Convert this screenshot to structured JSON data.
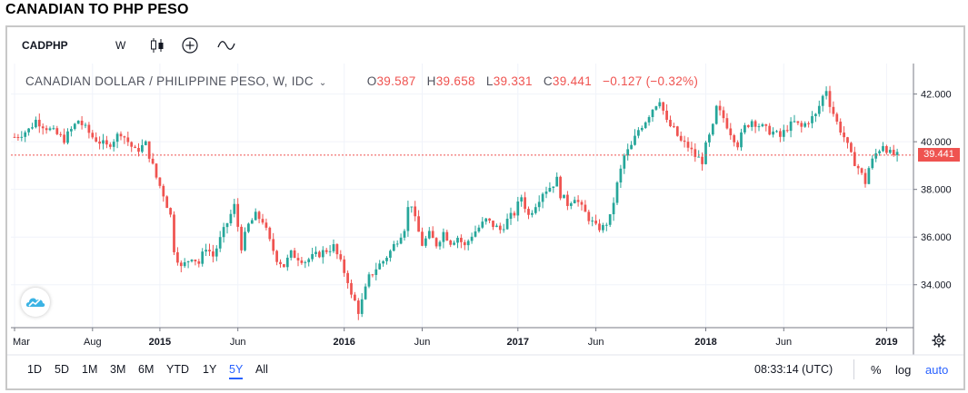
{
  "page_title": "CANADIAN TO PHP PESO",
  "toolbar": {
    "symbol": "CADPHP",
    "interval": "W",
    "icons": [
      "candlestick-icon",
      "plus-circle-icon",
      "indicator-wave-icon"
    ]
  },
  "legend": {
    "instrument": "CANADIAN DOLLAR / PHILIPPINE PESO, W, IDC",
    "open_label": "O",
    "open": "39.587",
    "high_label": "H",
    "high": "39.658",
    "low_label": "L",
    "low": "39.331",
    "close_label": "C",
    "close": "39.441",
    "change": "−0.127 (−0.32%)"
  },
  "last_price": "39.441",
  "colors": {
    "up": "#26a69a",
    "down": "#ef5350",
    "accent": "#2962ff",
    "grid": "#f0f3fa"
  },
  "range_buttons": [
    "1D",
    "5D",
    "1M",
    "3M",
    "6M",
    "YTD",
    "1Y",
    "5Y",
    "All"
  ],
  "range_active": "5Y",
  "clock": "08:33:14 (UTC)",
  "scale_buttons": [
    "%",
    "log",
    "auto"
  ],
  "scale_active": "auto",
  "chart_data": {
    "type": "candlestick",
    "interval": "weekly",
    "y_axis": {
      "ticks": [
        34.0,
        36.0,
        38.0,
        40.0,
        42.0
      ],
      "tick_labels": [
        "34.000",
        "36.000",
        "38.000",
        "40.000",
        "42.000"
      ],
      "range": [
        32.2,
        42.9
      ],
      "side": "right"
    },
    "x_axis": {
      "tick_labels": [
        "Mar",
        "Aug",
        "2015",
        "Jun",
        "2016",
        "Jun",
        "2017",
        "Jun",
        "2018",
        "Jun",
        "2019"
      ],
      "tick_weeks": [
        0,
        22,
        41,
        63,
        93,
        115,
        142,
        164,
        195,
        217,
        246
      ],
      "total_weeks": 250
    },
    "grid": true,
    "last_price_line": 39.441,
    "close_path": [
      [
        0,
        40.2
      ],
      [
        4,
        40.5
      ],
      [
        6,
        40.9
      ],
      [
        10,
        40.5
      ],
      [
        14,
        40.1
      ],
      [
        18,
        40.9
      ],
      [
        22,
        40.2
      ],
      [
        26,
        39.8
      ],
      [
        30,
        40.4
      ],
      [
        34,
        39.6
      ],
      [
        37,
        39.9
      ],
      [
        40,
        38.5
      ],
      [
        42,
        37.8
      ],
      [
        44,
        36.9
      ],
      [
        45,
        35.5
      ],
      [
        47,
        34.7
      ],
      [
        50,
        35.2
      ],
      [
        52,
        34.9
      ],
      [
        54,
        35.6
      ],
      [
        56,
        35.2
      ],
      [
        58,
        35.9
      ],
      [
        60,
        36.6
      ],
      [
        62,
        37.3
      ],
      [
        64,
        35.6
      ],
      [
        66,
        36.5
      ],
      [
        68,
        36.9
      ],
      [
        70,
        36.7
      ],
      [
        72,
        35.8
      ],
      [
        74,
        35.1
      ],
      [
        76,
        34.8
      ],
      [
        78,
        35.3
      ],
      [
        82,
        35.0
      ],
      [
        86,
        35.3
      ],
      [
        90,
        35.6
      ],
      [
        92,
        34.9
      ],
      [
        94,
        34.2
      ],
      [
        95,
        33.5
      ],
      [
        96,
        33.3
      ],
      [
        97,
        32.9
      ],
      [
        98,
        33.3
      ],
      [
        100,
        34.3
      ],
      [
        102,
        34.7
      ],
      [
        104,
        35.0
      ],
      [
        106,
        35.4
      ],
      [
        108,
        35.9
      ],
      [
        110,
        36.4
      ],
      [
        111,
        37.2
      ],
      [
        112,
        37.4
      ],
      [
        113,
        36.7
      ],
      [
        115,
        35.7
      ],
      [
        117,
        36.1
      ],
      [
        119,
        35.7
      ],
      [
        121,
        36.2
      ],
      [
        123,
        35.8
      ],
      [
        125,
        36.0
      ],
      [
        127,
        35.6
      ],
      [
        129,
        36.1
      ],
      [
        131,
        36.4
      ],
      [
        133,
        36.7
      ],
      [
        135,
        36.5
      ],
      [
        137,
        36.3
      ],
      [
        139,
        36.7
      ],
      [
        141,
        37.0
      ],
      [
        143,
        37.7
      ],
      [
        145,
        36.9
      ],
      [
        147,
        37.4
      ],
      [
        149,
        37.9
      ],
      [
        151,
        38.1
      ],
      [
        153,
        38.4
      ],
      [
        154,
        37.8
      ],
      [
        156,
        37.4
      ],
      [
        158,
        37.7
      ],
      [
        160,
        37.2
      ],
      [
        162,
        36.8
      ],
      [
        164,
        36.4
      ],
      [
        166,
        36.4
      ],
      [
        168,
        36.8
      ],
      [
        170,
        38.2
      ],
      [
        172,
        39.4
      ],
      [
        174,
        39.8
      ],
      [
        176,
        40.5
      ],
      [
        178,
        40.9
      ],
      [
        180,
        41.4
      ],
      [
        182,
        41.8
      ],
      [
        184,
        40.8
      ],
      [
        186,
        40.5
      ],
      [
        188,
        40.0
      ],
      [
        190,
        39.8
      ],
      [
        192,
        39.4
      ],
      [
        194,
        39.2
      ],
      [
        195,
        39.8
      ],
      [
        197,
        40.6
      ],
      [
        198,
        41.4
      ],
      [
        200,
        41.0
      ],
      [
        202,
        40.4
      ],
      [
        204,
        39.9
      ],
      [
        206,
        40.6
      ],
      [
        208,
        40.9
      ],
      [
        210,
        40.7
      ],
      [
        212,
        40.5
      ],
      [
        214,
        40.4
      ],
      [
        216,
        40.2
      ],
      [
        218,
        40.6
      ],
      [
        220,
        40.8
      ],
      [
        222,
        40.6
      ],
      [
        224,
        40.9
      ],
      [
        226,
        41.1
      ],
      [
        228,
        41.9
      ],
      [
        229,
        42.2
      ],
      [
        230,
        41.6
      ],
      [
        232,
        40.8
      ],
      [
        234,
        40.2
      ],
      [
        236,
        39.4
      ],
      [
        238,
        38.9
      ],
      [
        240,
        38.3
      ],
      [
        241,
        38.9
      ],
      [
        243,
        39.5
      ],
      [
        245,
        39.9
      ],
      [
        247,
        39.5
      ],
      [
        249,
        39.4
      ]
    ]
  }
}
